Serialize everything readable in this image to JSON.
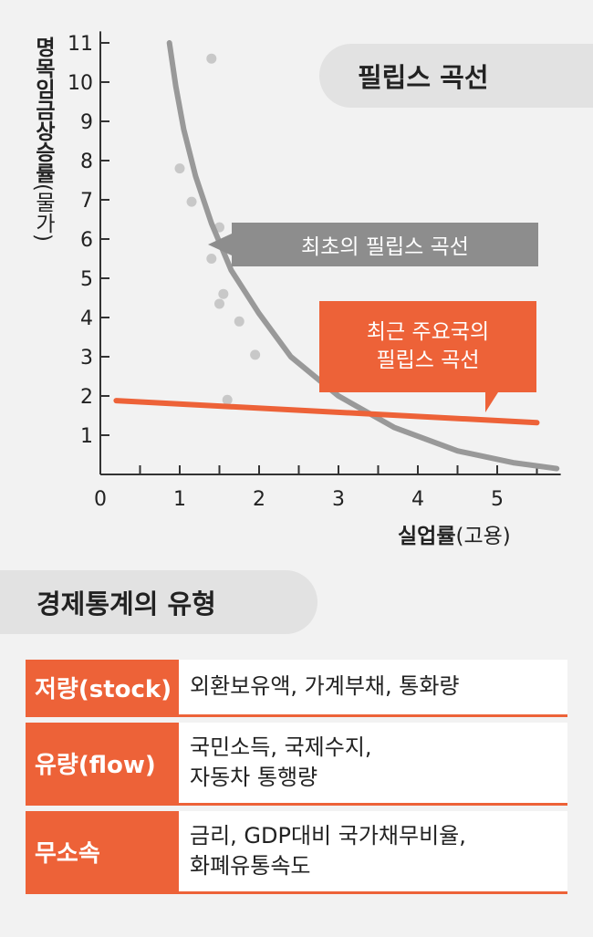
{
  "chart_data": {
    "type": "line",
    "title": "필립스 곡선",
    "ylabel_bold": "명목임금상승률",
    "ylabel_paren": "(물가)",
    "xlabel_bold": "실업률",
    "xlabel_paren": "(고용)",
    "xlim": [
      0,
      5.8
    ],
    "ylim": [
      0,
      11.2
    ],
    "x_ticks": [
      "0",
      "1",
      "2",
      "3",
      "4",
      "5"
    ],
    "y_ticks": [
      "1",
      "2",
      "3",
      "4",
      "5",
      "6",
      "7",
      "8",
      "9",
      "10",
      "11"
    ],
    "scatter": [
      {
        "x": 1.4,
        "y": 10.6
      },
      {
        "x": 1.0,
        "y": 7.8
      },
      {
        "x": 1.15,
        "y": 6.95
      },
      {
        "x": 1.5,
        "y": 6.3
      },
      {
        "x": 1.4,
        "y": 5.5
      },
      {
        "x": 1.55,
        "y": 4.6
      },
      {
        "x": 1.5,
        "y": 4.35
      },
      {
        "x": 1.75,
        "y": 3.9
      },
      {
        "x": 1.95,
        "y": 3.05
      },
      {
        "x": 1.6,
        "y": 1.9
      }
    ],
    "series": [
      {
        "name": "최초의 필립스 곡선",
        "color": "#999999",
        "points": [
          [
            0.87,
            11.0
          ],
          [
            0.95,
            9.9
          ],
          [
            1.05,
            8.8
          ],
          [
            1.2,
            7.6
          ],
          [
            1.4,
            6.4
          ],
          [
            1.65,
            5.2
          ],
          [
            2.0,
            4.1
          ],
          [
            2.4,
            3.0
          ],
          [
            3.0,
            2.0
          ],
          [
            3.7,
            1.2
          ],
          [
            4.5,
            0.6
          ],
          [
            5.2,
            0.3
          ],
          [
            5.75,
            0.15
          ]
        ]
      },
      {
        "name": "최근 주요국의 필립스 곡선",
        "color": "#ed6238",
        "points": [
          [
            0.2,
            1.88
          ],
          [
            5.5,
            1.32
          ]
        ]
      }
    ],
    "annotations": [
      "최초의 필립스 곡선",
      "최근 주요국의",
      "필립스 곡선"
    ]
  },
  "section_title": "경제통계의 유형",
  "types": [
    {
      "category": "저량(stock)",
      "examples": "외환보유액, 가계부채, 통화량"
    },
    {
      "category": "유량(flow)",
      "examples": "국민소득, 국제수지,\n자동차 통행량"
    },
    {
      "category": "무소속",
      "examples": "금리, GDP대비 국가채무비율,\n화폐유통속도"
    }
  ],
  "colors": {
    "accent": "#ed6238",
    "gray_curve": "#999999",
    "pill": "#e2e2e2"
  }
}
